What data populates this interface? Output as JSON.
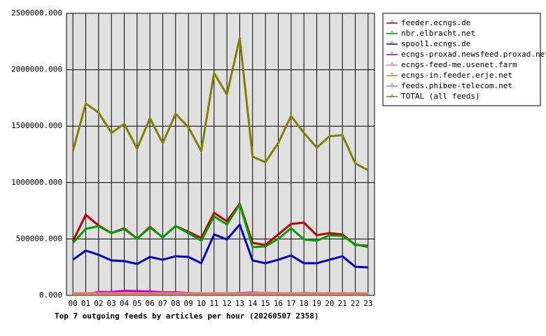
{
  "chart_data": {
    "type": "line",
    "title": "Top 7 outgoing feeds by articles per hour (20260507 2358)",
    "categories": [
      "00",
      "01",
      "02",
      "03",
      "04",
      "05",
      "06",
      "07",
      "08",
      "09",
      "10",
      "11",
      "12",
      "13",
      "14",
      "15",
      "16",
      "17",
      "18",
      "19",
      "20",
      "21",
      "22",
      "23"
    ],
    "ylim": [
      0,
      2500000
    ],
    "yticks": [
      {
        "value": 0,
        "label": "0.000"
      },
      {
        "value": 500000,
        "label": "500000.000"
      },
      {
        "value": 1000000,
        "label": "1000000.000"
      },
      {
        "value": 1500000,
        "label": "1500000.000"
      },
      {
        "value": 2000000,
        "label": "2000000.000"
      },
      {
        "value": 2500000,
        "label": "2500000.000"
      }
    ],
    "grid": true,
    "legend": "right",
    "series": [
      {
        "name": "feeder.ecngs.de",
        "color": "#c00000",
        "values": [
          480000,
          713000,
          620000,
          552000,
          595000,
          502000,
          608000,
          515000,
          614000,
          564000,
          509000,
          732000,
          657000,
          813000,
          465000,
          447000,
          540000,
          633000,
          645000,
          533000,
          552000,
          540000,
          447000,
          440000
        ]
      },
      {
        "name": "nbr.elbracht.net",
        "color": "#00a000",
        "values": [
          465000,
          589000,
          614000,
          552000,
          589000,
          502000,
          602000,
          515000,
          614000,
          552000,
          484000,
          701000,
          627000,
          806000,
          428000,
          434000,
          502000,
          595000,
          496000,
          484000,
          533000,
          527000,
          453000,
          428000
        ]
      },
      {
        "name": "spool1.ecngs.de",
        "color": "#0000c0",
        "values": [
          316000,
          397000,
          360000,
          310000,
          304000,
          279000,
          341000,
          316000,
          347000,
          341000,
          285000,
          540000,
          496000,
          627000,
          310000,
          285000,
          316000,
          354000,
          285000,
          285000,
          316000,
          347000,
          254000,
          248000
        ]
      },
      {
        "name": "ecngs-proxad.newsfeed.proxad.net",
        "color": "#c000c0",
        "values": [
          15000,
          10000,
          30000,
          30000,
          40000,
          38000,
          35000,
          28000,
          28000,
          22000,
          15000,
          15000,
          15000,
          22000,
          25000,
          22000,
          15000,
          15000,
          22000,
          18000,
          18000,
          18000,
          18000,
          12000
        ]
      },
      {
        "name": "ecngs-feed-me.usenet.farm",
        "color": "#ff8080",
        "values": [
          20000,
          20000,
          20000,
          20000,
          20000,
          20000,
          20000,
          20000,
          20000,
          20000,
          20000,
          20000,
          20000,
          20000,
          20000,
          25000,
          20000,
          20000,
          20000,
          20000,
          20000,
          20000,
          20000,
          20000
        ]
      },
      {
        "name": "ecngs-in.feeder.erje.net",
        "color": "#ff8000",
        "values": [
          10000,
          10000,
          10000,
          10000,
          10000,
          10000,
          10000,
          10000,
          10000,
          10000,
          10000,
          10000,
          10000,
          10000,
          10000,
          10000,
          10000,
          10000,
          10000,
          10000,
          10000,
          10000,
          10000,
          10000
        ]
      },
      {
        "name": "feeds.phibee-telecom.net",
        "color": "#c08080",
        "values": [
          15000,
          15000,
          15000,
          15000,
          15000,
          15000,
          15000,
          15000,
          15000,
          15000,
          15000,
          15000,
          15000,
          15000,
          15000,
          15000,
          15000,
          15000,
          15000,
          15000,
          15000,
          15000,
          15000,
          15000
        ]
      },
      {
        "name": "TOTAL (all feeds)",
        "color": "#808000",
        "values": [
          1280000,
          1700000,
          1620000,
          1440000,
          1520000,
          1300000,
          1570000,
          1350000,
          1610000,
          1490000,
          1280000,
          1970000,
          1780000,
          2280000,
          1230000,
          1180000,
          1350000,
          1590000,
          1440000,
          1310000,
          1410000,
          1420000,
          1170000,
          1110000
        ]
      }
    ]
  }
}
